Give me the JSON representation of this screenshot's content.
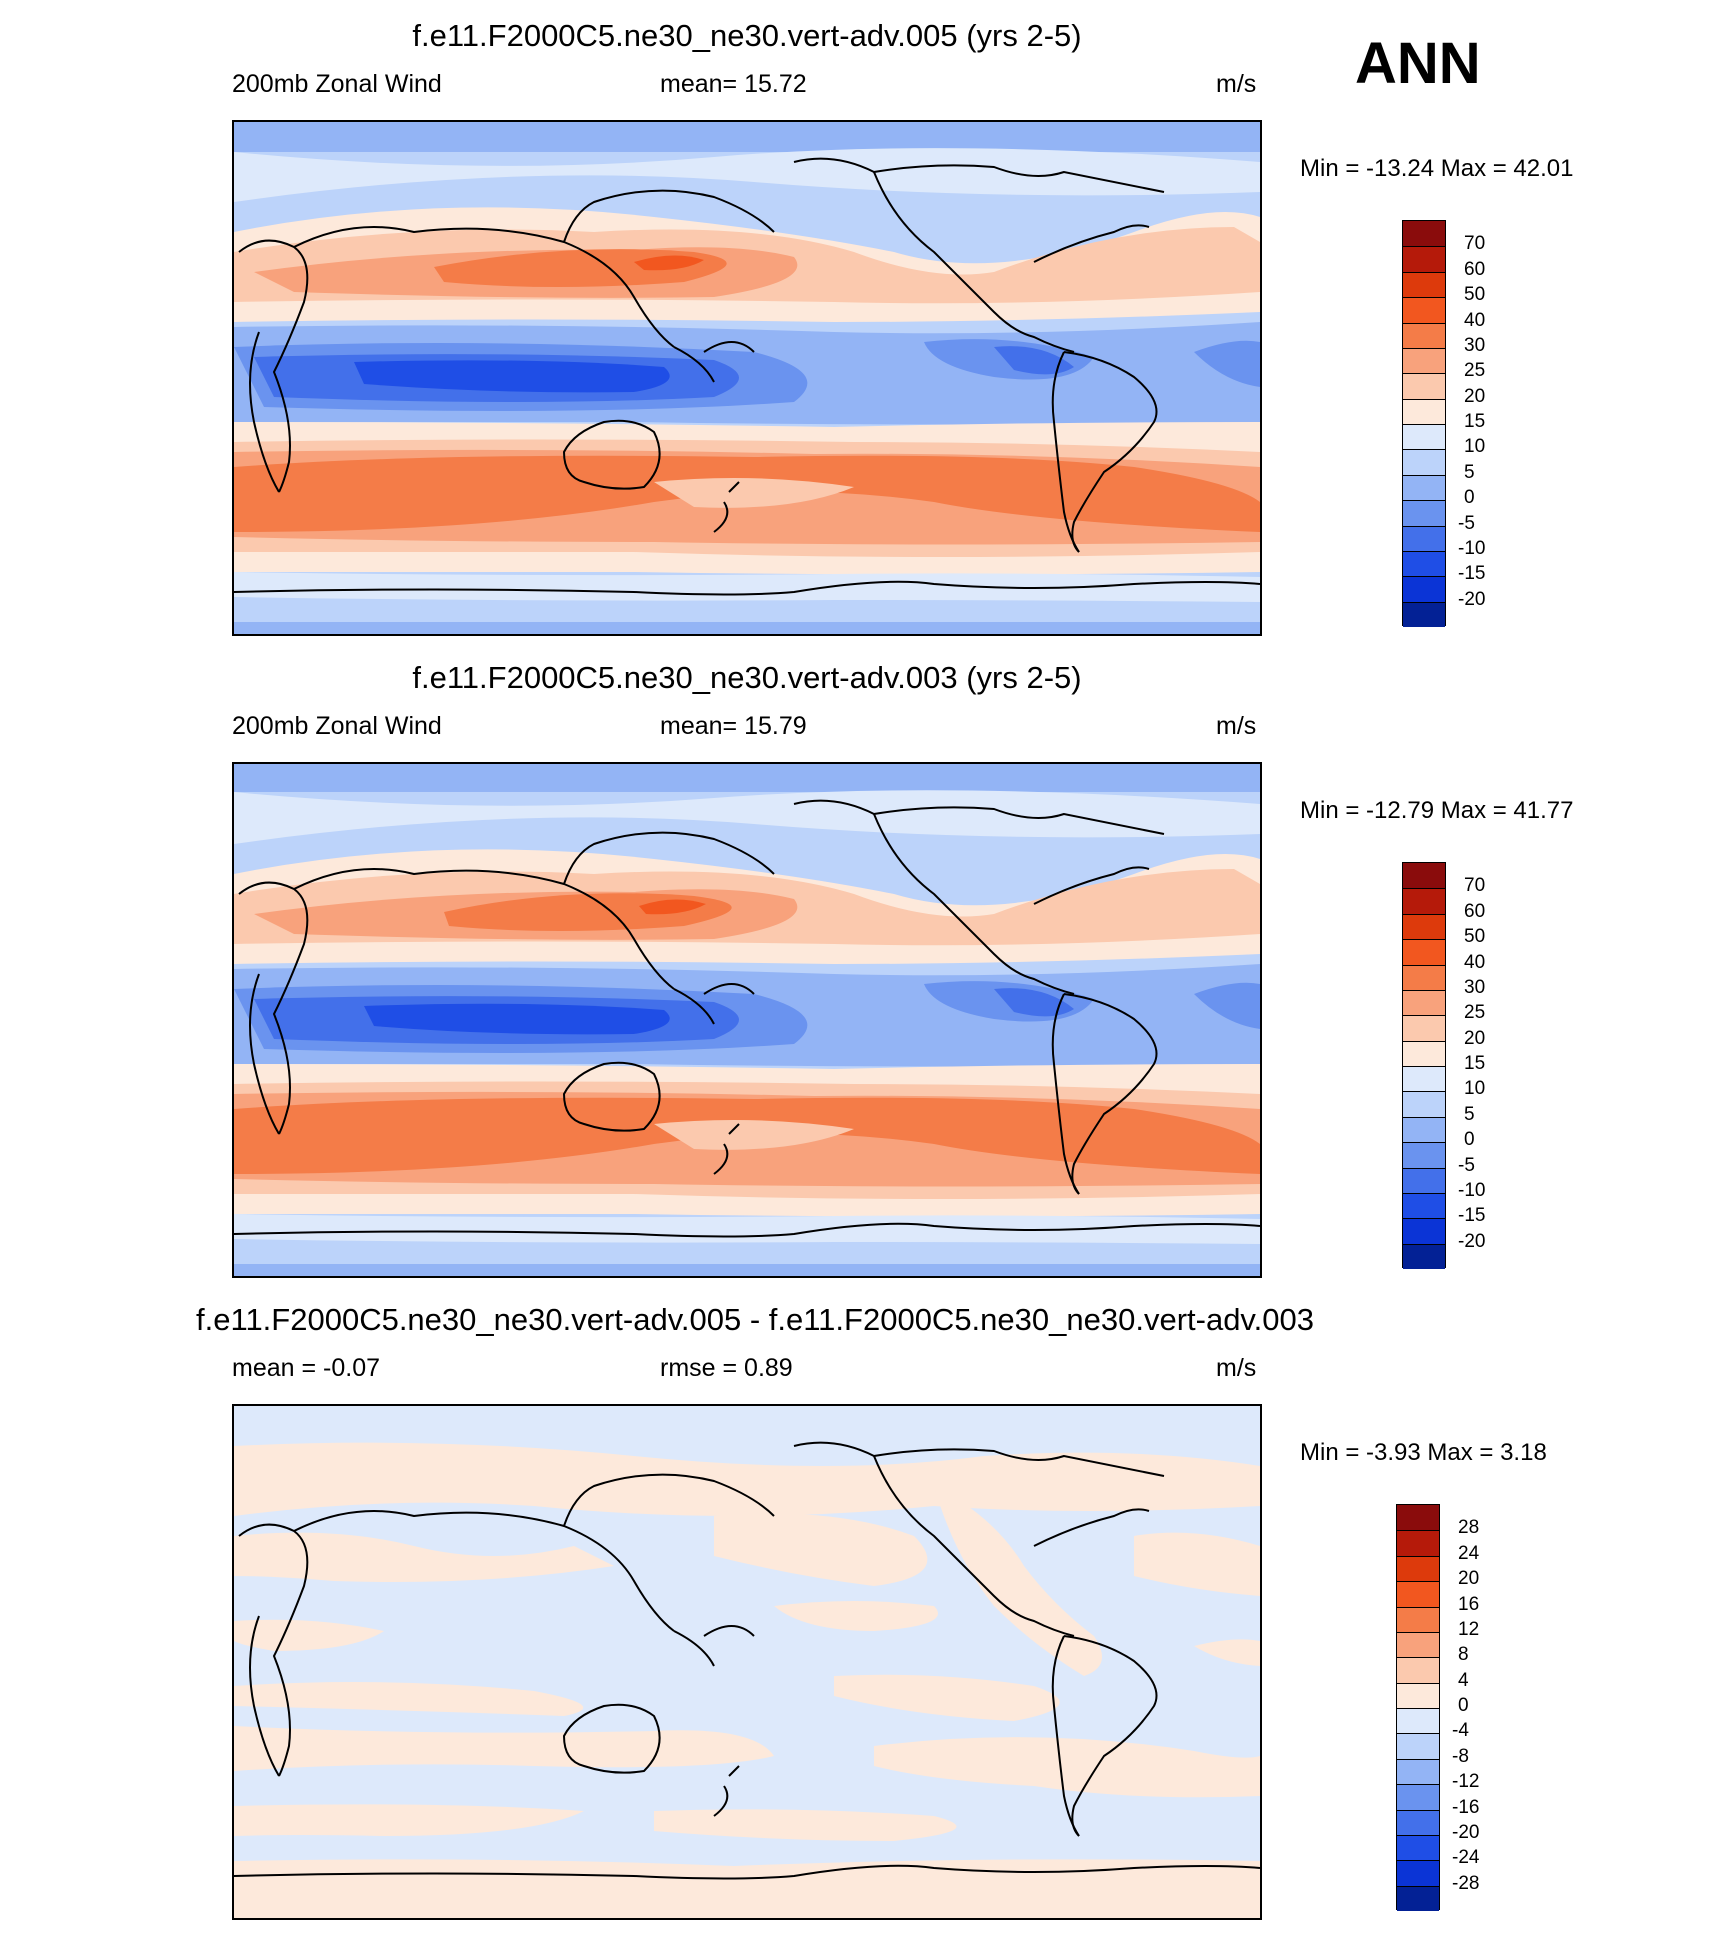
{
  "season": "ANN",
  "panels": [
    {
      "title": "f.e11.F2000C5.ne30_ne30.vert-adv.005 (yrs 2-5)",
      "left_label": "200mb Zonal Wind",
      "center_label": "mean=  15.72",
      "units": "m/s",
      "minmax": "Min = -13.24 Max =  42.01",
      "kind": "field"
    },
    {
      "title": "f.e11.F2000C5.ne30_ne30.vert-adv.003 (yrs 2-5)",
      "left_label": "200mb Zonal Wind",
      "center_label": "mean=  15.79",
      "units": "m/s",
      "minmax": "Min = -12.79 Max =  41.77",
      "kind": "field"
    },
    {
      "title": "f.e11.F2000C5.ne30_ne30.vert-adv.005 - f.e11.F2000C5.ne30_ne30.vert-adv.003",
      "left_label": "mean =  -0.07",
      "center_label": "rmse =   0.89",
      "units": "m/s",
      "minmax": "Min =  -3.93 Max =   3.18",
      "kind": "diff"
    }
  ],
  "colorbars": {
    "field": {
      "labels": [
        "70",
        "60",
        "50",
        "40",
        "30",
        "25",
        "20",
        "15",
        "10",
        "5",
        "0",
        "-5",
        "-10",
        "-15",
        "-20"
      ],
      "colors": [
        "#8a0c0c",
        "#b51a0a",
        "#dd3a0c",
        "#f2571f",
        "#f47c48",
        "#f8a27c",
        "#fbc9ae",
        "#fde9db",
        "#dde9fb",
        "#bcd3fa",
        "#93b4f5",
        "#6a93ef",
        "#4370ea",
        "#1f4ee6",
        "#0b34d6",
        "#032195"
      ]
    },
    "diff": {
      "labels": [
        "28",
        "24",
        "20",
        "16",
        "12",
        "8",
        "4",
        "0",
        "-4",
        "-8",
        "-12",
        "-16",
        "-20",
        "-24",
        "-28"
      ],
      "colors": [
        "#8a0c0c",
        "#b51a0a",
        "#dd3a0c",
        "#f2571f",
        "#f47c48",
        "#f8a27c",
        "#fbc9ae",
        "#fde9db",
        "#dde9fb",
        "#bcd3fa",
        "#93b4f5",
        "#6a93ef",
        "#4370ea",
        "#1f4ee6",
        "#0b34d6",
        "#032195"
      ]
    }
  }
}
